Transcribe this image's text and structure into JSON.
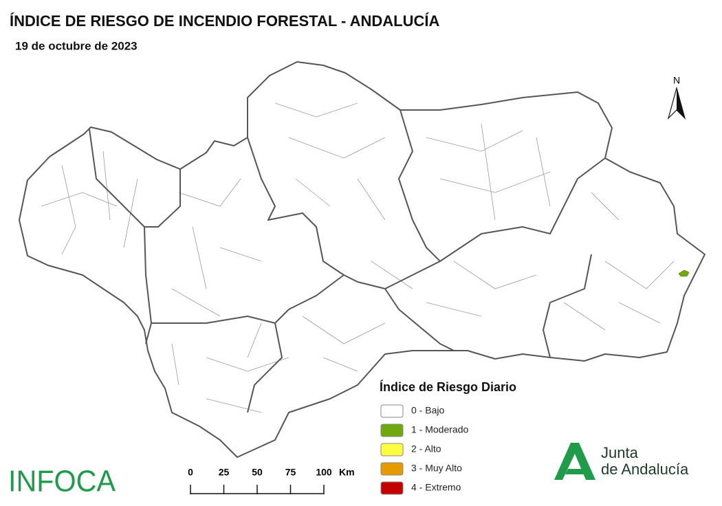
{
  "header": {
    "title": "ÍNDICE DE RIESGO DE INCENDIO FORESTAL - ANDALUCÍA",
    "date": "19 de octubre de 2023"
  },
  "north_label": "N",
  "legend": {
    "title": "Índice de Riesgo Diario",
    "items": [
      {
        "label": "0 - Bajo",
        "color": "#ffffff"
      },
      {
        "label": "1 - Moderado",
        "color": "#6fa90e"
      },
      {
        "label": "2 - Alto",
        "color": "#ffff40"
      },
      {
        "label": "3 - Muy Alto",
        "color": "#e59a00"
      },
      {
        "label": "4 - Extremo",
        "color": "#c50000"
      }
    ]
  },
  "scale_bar": {
    "ticks": [
      0,
      25,
      50,
      75,
      100
    ],
    "unit": "Km"
  },
  "logos": {
    "infoca": "INFOCA",
    "junta_line1": "Junta",
    "junta_line2": "de Andalucía"
  }
}
